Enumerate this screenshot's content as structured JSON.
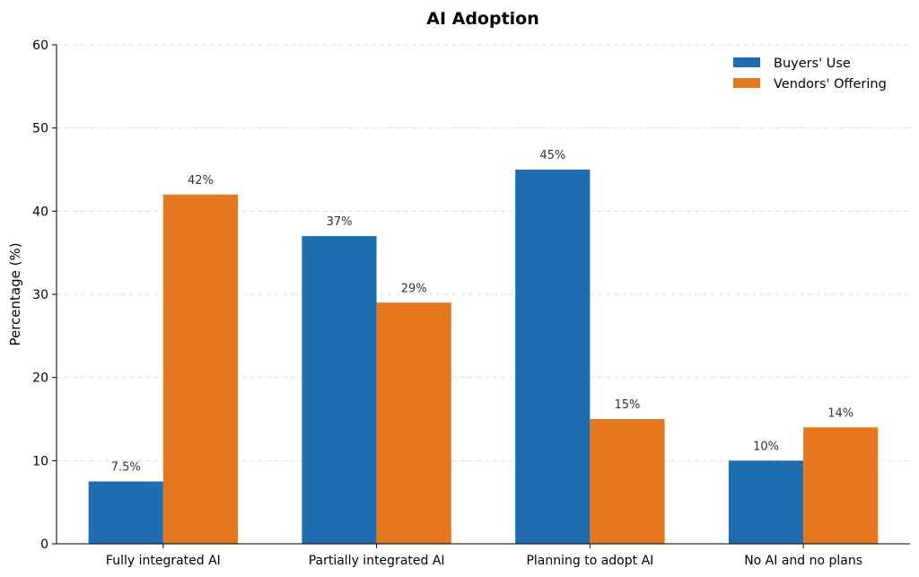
{
  "chart_data": {
    "type": "bar",
    "title": "AI Adoption",
    "xlabel": "",
    "ylabel": "Percentage (%)",
    "ylim": [
      0,
      60
    ],
    "yticks": [
      0,
      10,
      20,
      30,
      40,
      50,
      60
    ],
    "grid": "y dashed",
    "legend_position": "top-right",
    "categories": [
      "Fully integrated AI",
      "Partially integrated AI",
      "Planning to adopt AI",
      "No AI and no plans"
    ],
    "series": [
      {
        "name": "Buyers' Use",
        "color": "#1f6db1",
        "values": [
          7.5,
          37,
          45,
          10
        ],
        "labels": [
          "7.5%",
          "37%",
          "45%",
          "10%"
        ]
      },
      {
        "name": "Vendors' Offering",
        "color": "#e5771e",
        "values": [
          42,
          29,
          15,
          14
        ],
        "labels": [
          "42%",
          "29%",
          "15%",
          "14%"
        ]
      }
    ]
  }
}
